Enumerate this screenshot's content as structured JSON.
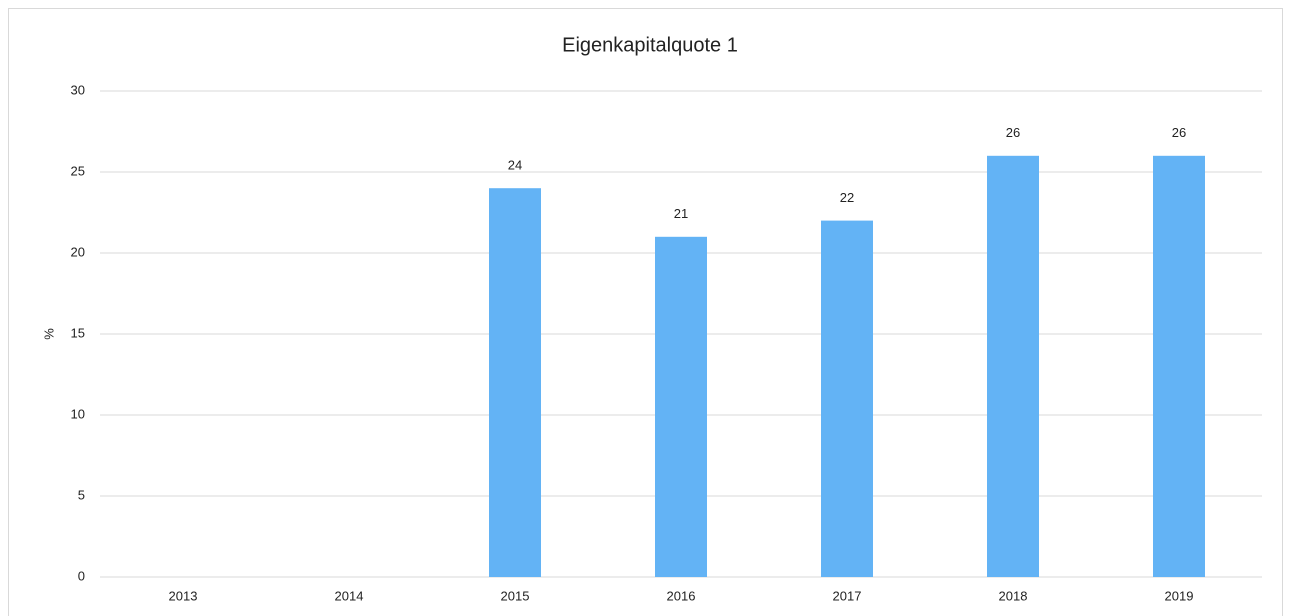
{
  "chart_data": {
    "type": "bar",
    "title": "Eigenkapitalquote 1",
    "y_label": "%",
    "categories": [
      "2013",
      "2014",
      "2015",
      "2016",
      "2017",
      "2018",
      "2019"
    ],
    "values": [
      null,
      null,
      24,
      21,
      22,
      26,
      26
    ],
    "color": "#63b3f5",
    "ylim": [
      0,
      30
    ],
    "yticks": [
      0,
      5,
      10,
      15,
      20,
      25,
      30
    ],
    "grid": true
  }
}
